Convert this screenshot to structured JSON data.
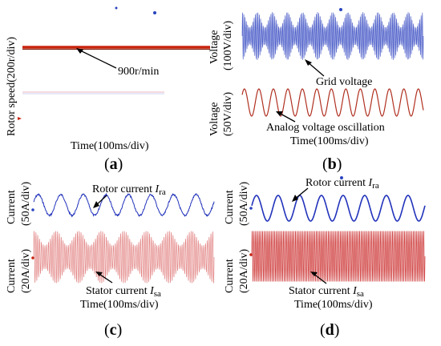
{
  "chart_data": [
    {
      "panel": "(a)",
      "type": "line",
      "xlabel": "Time(100ms/div)",
      "ylabel": "Rotor speed(200r/div)",
      "series": [
        {
          "values": [
            900
          ],
          "color": "#cc2200",
          "kind": "constant"
        }
      ],
      "annotations": [
        {
          "text": "900r/min"
        }
      ]
    },
    {
      "panel": "(b)",
      "type": "line",
      "xlabel": "Time(100ms/div)",
      "ylabels": [
        "Voltage (100V/div)",
        "Voltage (50V/div)"
      ],
      "series": [
        {
          "name": "Grid voltage",
          "color": "#4a5cc8",
          "carrier_cycles": 140,
          "envelope_cycles": 12,
          "kind": "modulated"
        },
        {
          "name": "Analog voltage oscillation",
          "color": "#b03020",
          "cycles": 12.5,
          "kind": "sine"
        }
      ]
    },
    {
      "panel": "(c)",
      "type": "line",
      "xlabel": "Time(100ms/div)",
      "ylabels": [
        "Current (50A/div)",
        "Current (20A/div)"
      ],
      "series": [
        {
          "name": "Rotor current I_ra",
          "color": "#2233bb",
          "cycles": 8,
          "kind": "noisy-sine"
        },
        {
          "name": "Stator current I_sa",
          "color": "#e07070",
          "carrier_cycles": 100,
          "envelope_cycles": 8,
          "kind": "modulated"
        }
      ]
    },
    {
      "panel": "(d)",
      "type": "line",
      "xlabel": "Time(100ms/div)",
      "ylabels": [
        "Current (50A/div)",
        "Current (20A/div)"
      ],
      "series": [
        {
          "name": "Rotor current I_ra",
          "color": "#2233bb",
          "cycles": 8,
          "kind": "sine"
        },
        {
          "name": "Stator current I_sa",
          "color": "#cc3030",
          "carrier_cycles": 100,
          "kind": "sine-dense"
        }
      ]
    }
  ],
  "labels": {
    "a": {
      "ylabel": "Rotor speed(200r/div)",
      "xlabel": "Time(100ms/div)",
      "speed": "900r/min",
      "panel": "a"
    },
    "b": {
      "ylabel_top_1": "Voltage",
      "ylabel_top_2": "(100V/div)",
      "ylabel_bot_1": "Voltage",
      "ylabel_bot_2": "(50V/div)",
      "grid": "Grid voltage",
      "analog": "Analog voltage oscillation",
      "xlabel": "Time(100ms/div)",
      "panel": "b"
    },
    "c": {
      "ylabel_top_1": "Current",
      "ylabel_top_2": "(50A/div)",
      "ylabel_bot_1": "Current",
      "ylabel_bot_2": "(20A/div)",
      "rotor": "Rotor current ",
      "rotor_sym": "I",
      "rotor_sub": "ra",
      "stator": "Stator current ",
      "stator_sym": "I",
      "stator_sub": "sa",
      "xlabel": "Time(100ms/div)",
      "panel": "c"
    },
    "d": {
      "ylabel_top_1": "Current",
      "ylabel_top_2": "(50A/div)",
      "ylabel_bot_1": "Current",
      "ylabel_bot_2": "(20A/div)",
      "rotor": "Rotor current ",
      "rotor_sym": "I",
      "rotor_sub": "ra",
      "stator": "Stator current ",
      "stator_sym": "I",
      "stator_sub": "sa",
      "xlabel": "Time(100ms/div)",
      "panel": "d"
    },
    "paren_open": "(",
    "paren_close": ")"
  }
}
